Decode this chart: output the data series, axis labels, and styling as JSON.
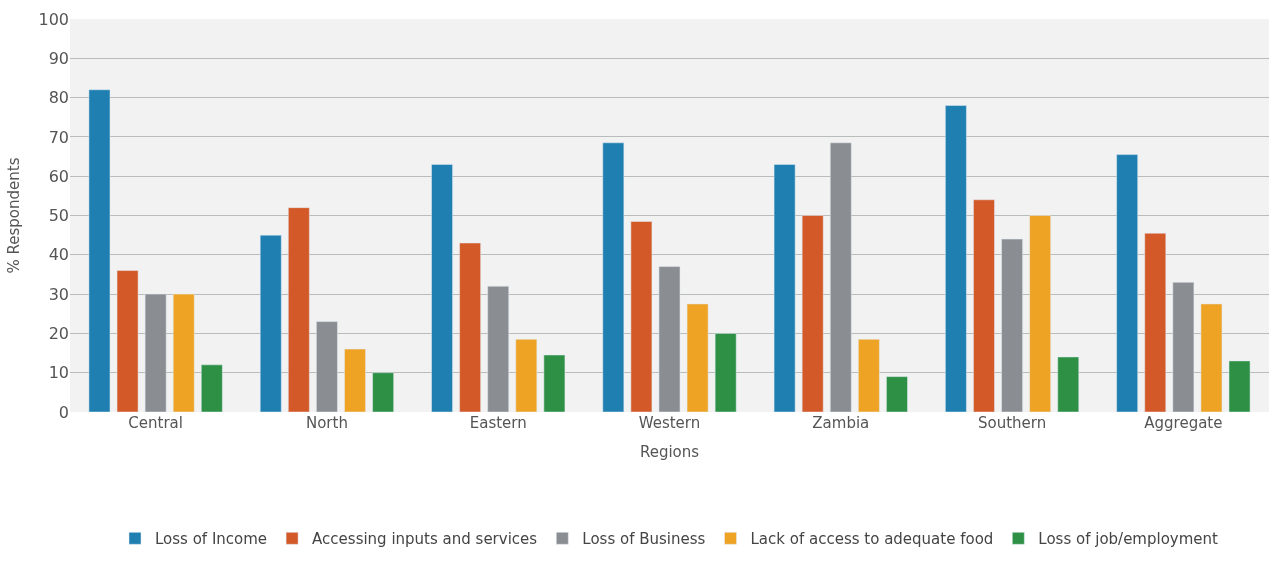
{
  "chart_data": {
    "type": "bar",
    "xlabel": "Regions",
    "ylabel": "% Respondents",
    "categories": [
      "Central",
      "North",
      "Eastern",
      "Western",
      "Zambia",
      "Southern",
      "Aggregate"
    ],
    "series": [
      {
        "name": "Loss of Income",
        "color": "#1f7fb0",
        "values": [
          82,
          45,
          63,
          68.5,
          63,
          78,
          65.5
        ]
      },
      {
        "name": "Accessing inputs and services",
        "color": "#d35a28",
        "values": [
          36,
          52,
          43,
          48.5,
          50,
          54,
          45.5
        ]
      },
      {
        "name": "Loss of Business",
        "color": "#8a8e92",
        "values": [
          30,
          23,
          32,
          37,
          68.5,
          44,
          33
        ]
      },
      {
        "name": "Lack of access to adequate food",
        "color": "#eea325",
        "values": [
          30,
          16,
          18.5,
          27.5,
          18.5,
          50,
          27.5
        ]
      },
      {
        "name": "Loss of job/employment",
        "color": "#2e9045",
        "values": [
          12,
          10,
          14.5,
          20,
          9,
          14,
          13
        ]
      }
    ],
    "ylim": [
      0,
      100
    ],
    "yticks": [
      0,
      10,
      20,
      30,
      40,
      50,
      60,
      70,
      80,
      90,
      100
    ],
    "grid": "y",
    "legend": "bottom"
  }
}
